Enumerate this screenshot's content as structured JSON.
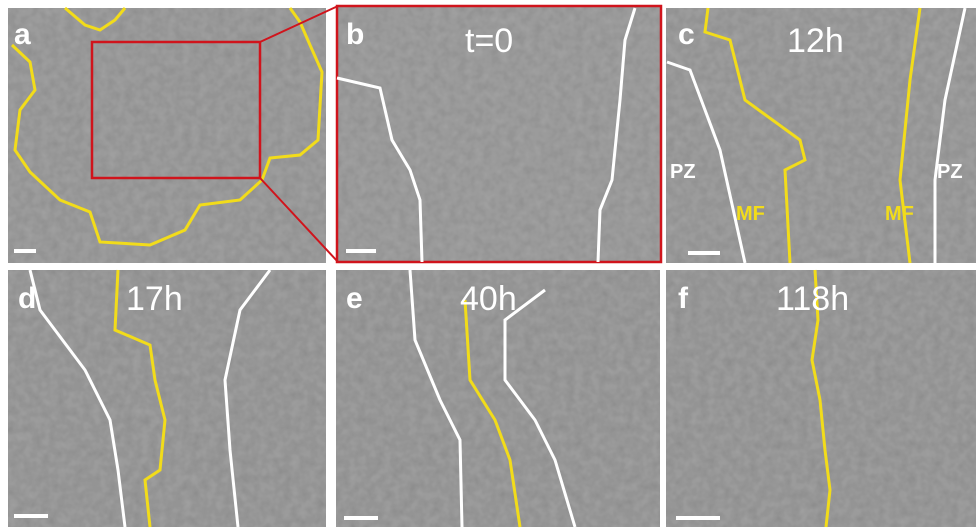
{
  "panels": [
    {
      "letter": "a"
    },
    {
      "letter": "b",
      "time": "t=0"
    },
    {
      "letter": "c",
      "time": "12h",
      "labels": [
        "PZ",
        "MF",
        "MF",
        "PZ"
      ]
    },
    {
      "letter": "d",
      "time": "17h"
    },
    {
      "letter": "e",
      "time": "40h"
    },
    {
      "letter": "f",
      "time": "118h"
    }
  ]
}
